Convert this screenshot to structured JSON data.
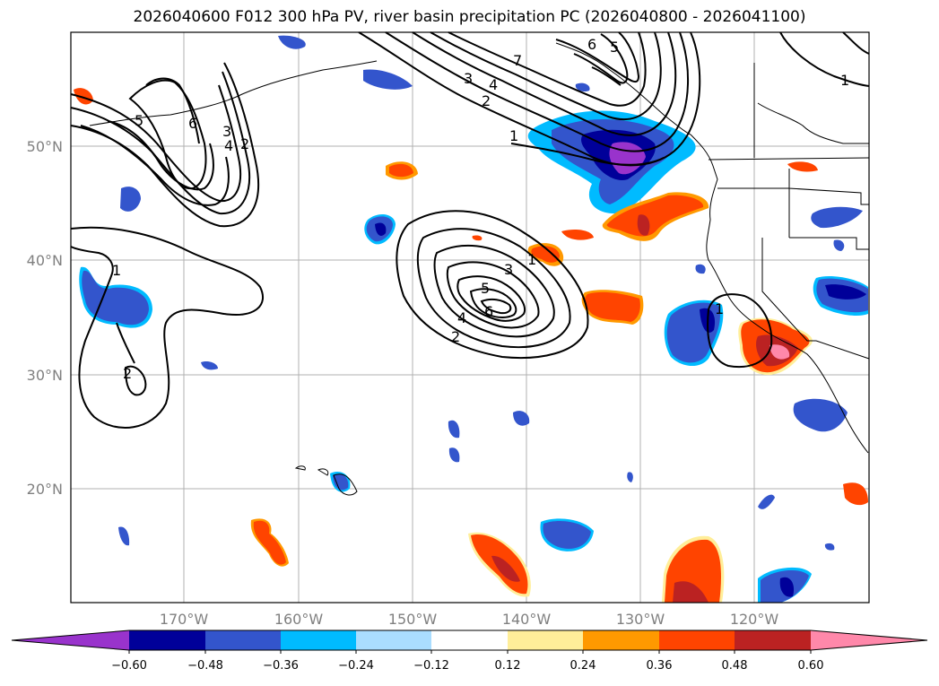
{
  "title": "2026040600 F012 300 hPa PV, river basin precipitation PC (2026040800 - 2026041100)",
  "lat_labels": [
    "50°N",
    "40°N",
    "30°N",
    "20°N"
  ],
  "lon_labels": [
    "170°W",
    "160°W",
    "150°W",
    "140°W",
    "130°W",
    "120°W"
  ],
  "colorbar": {
    "ticks": [
      "−0.60",
      "−0.48",
      "−0.36",
      "−0.24",
      "−0.12",
      "0.12",
      "0.24",
      "0.36",
      "0.48",
      "0.60"
    ],
    "colors": [
      "#9933cc",
      "#000099",
      "#3355cc",
      "#00bbff",
      "#aaddff",
      "#ffffff",
      "#ffee99",
      "#ff9900",
      "#ff4400",
      "#bb2222",
      "#ff88aa"
    ],
    "extend": "both"
  },
  "contour_labels": [
    "1",
    "2",
    "3",
    "4",
    "5",
    "6",
    "7"
  ],
  "colors": {
    "grid": "#b0b0b0",
    "axis_label": "#808080"
  }
}
